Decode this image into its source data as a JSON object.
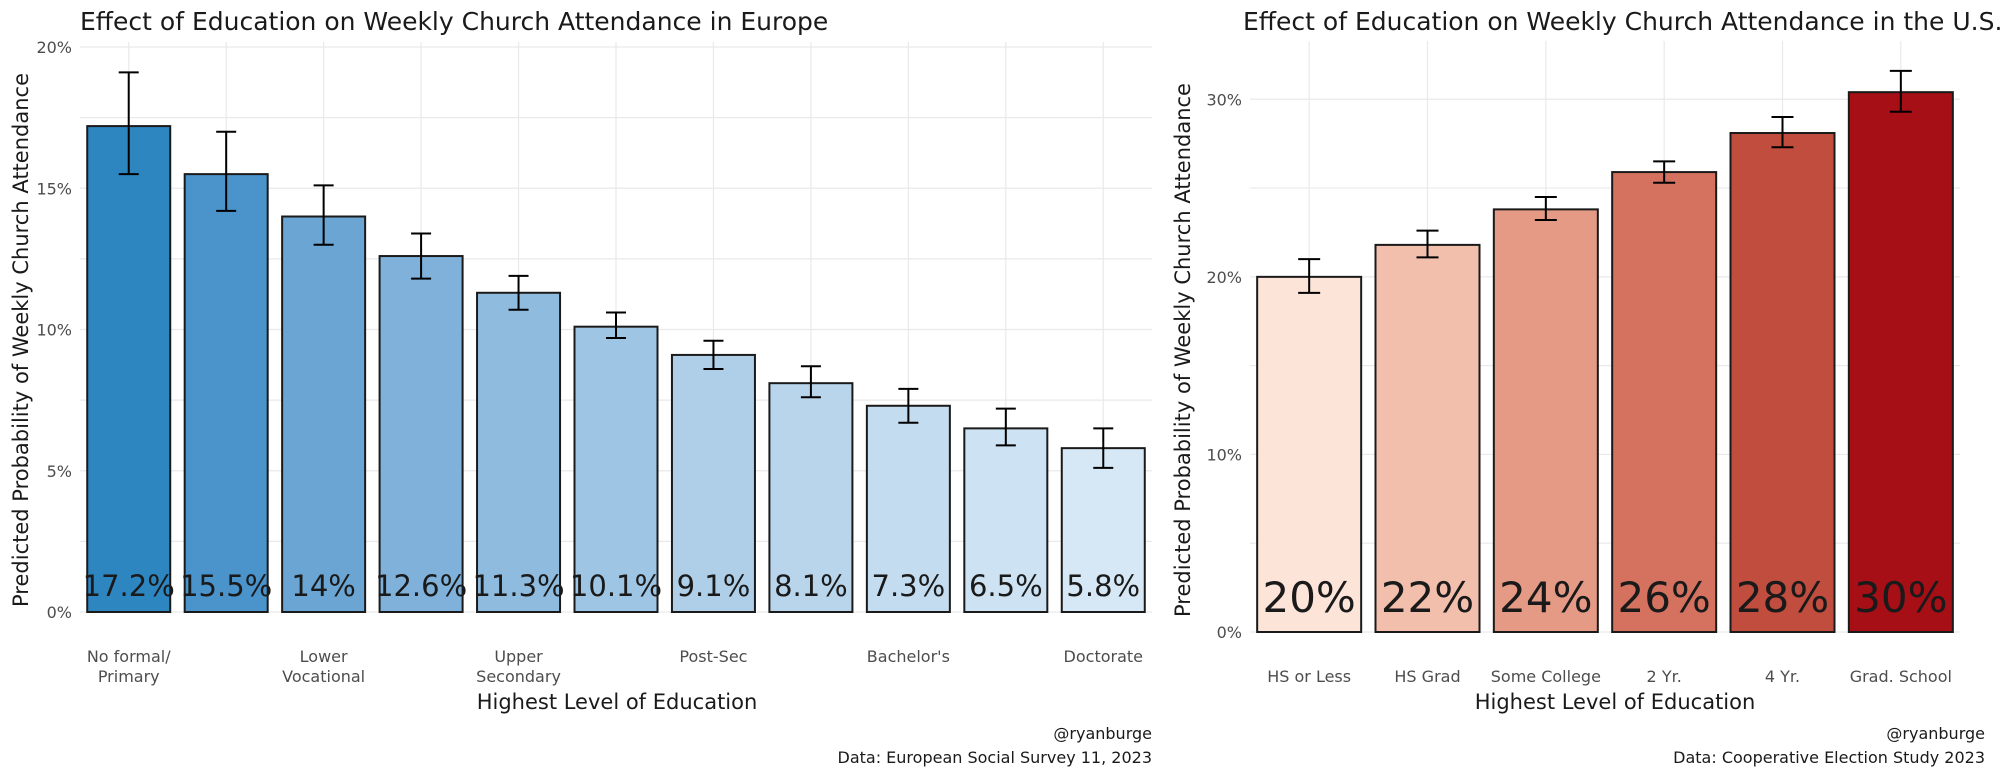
{
  "chart_data": [
    {
      "type": "bar",
      "title": "Effect of Education on Weekly Church Attendance in Europe",
      "xlabel": "Highest Level of Education",
      "ylabel": "Predicted Probability of Weekly Church Attendance",
      "ylim": [
        0,
        0.2
      ],
      "y_ticks": [
        0,
        0.05,
        0.1,
        0.15,
        0.2
      ],
      "y_tick_labels": [
        "0%",
        "5%",
        "10%",
        "15%",
        "20%"
      ],
      "x_tick_labels": [
        {
          "index": 0,
          "lines": [
            "No formal/",
            "Primary"
          ]
        },
        {
          "index": 2,
          "lines": [
            "Lower",
            "Vocational"
          ]
        },
        {
          "index": 4,
          "lines": [
            "Upper",
            "Secondary"
          ]
        },
        {
          "index": 6,
          "lines": [
            "Post-Sec"
          ]
        },
        {
          "index": 8,
          "lines": [
            "Bachelor's"
          ]
        },
        {
          "index": 10,
          "lines": [
            "Doctorate"
          ]
        }
      ],
      "values": [
        0.172,
        0.155,
        0.14,
        0.126,
        0.113,
        0.101,
        0.091,
        0.081,
        0.073,
        0.065,
        0.058
      ],
      "ci_low": [
        0.155,
        0.142,
        0.13,
        0.118,
        0.107,
        0.097,
        0.086,
        0.076,
        0.067,
        0.059,
        0.051
      ],
      "ci_high": [
        0.191,
        0.17,
        0.151,
        0.134,
        0.119,
        0.106,
        0.096,
        0.087,
        0.079,
        0.072,
        0.065
      ],
      "labels": [
        "17.2%",
        "15.5%",
        "14%",
        "12.6%",
        "11.3%",
        "10.1%",
        "9.1%",
        "8.1%",
        "7.3%",
        "6.5%",
        "5.8%"
      ],
      "colors": [
        "#2e86c1",
        "#4a93cb",
        "#6aa5d3",
        "#7fb1da",
        "#8fbbdf",
        "#9fc5e4",
        "#afcfe9",
        "#b9d5ec",
        "#c4dcef",
        "#cde2f2",
        "#d6e8f5"
      ],
      "caption_lines": [
        "@ryanburge",
        "Data: European Social Survey 11, 2023"
      ]
    },
    {
      "type": "bar",
      "title": "Effect of Education on Weekly Church Attendance in the U.S.",
      "xlabel": "Highest Level of Education",
      "ylabel": "Predicted Probability of Weekly Church Attendance",
      "ylim": [
        0,
        0.33
      ],
      "y_ticks": [
        0,
        0.1,
        0.2,
        0.3
      ],
      "y_tick_labels": [
        "0%",
        "10%",
        "20%",
        "30%"
      ],
      "categories": [
        "HS or Less",
        "HS Grad",
        "Some College",
        "2 Yr.",
        "4 Yr.",
        "Grad. School"
      ],
      "values": [
        0.2,
        0.218,
        0.238,
        0.259,
        0.281,
        0.304
      ],
      "ci_low": [
        0.191,
        0.211,
        0.232,
        0.253,
        0.273,
        0.293
      ],
      "ci_high": [
        0.21,
        0.226,
        0.245,
        0.265,
        0.29,
        0.316
      ],
      "labels": [
        "20%",
        "22%",
        "24%",
        "26%",
        "28%",
        "30%"
      ],
      "colors": [
        "#fde4d9",
        "#f2bfad",
        "#e59a85",
        "#d4725f",
        "#c14d3f",
        "#a50f15"
      ],
      "caption_lines": [
        "@ryanburge",
        "Data: Cooperative Election Study 2023"
      ]
    }
  ]
}
